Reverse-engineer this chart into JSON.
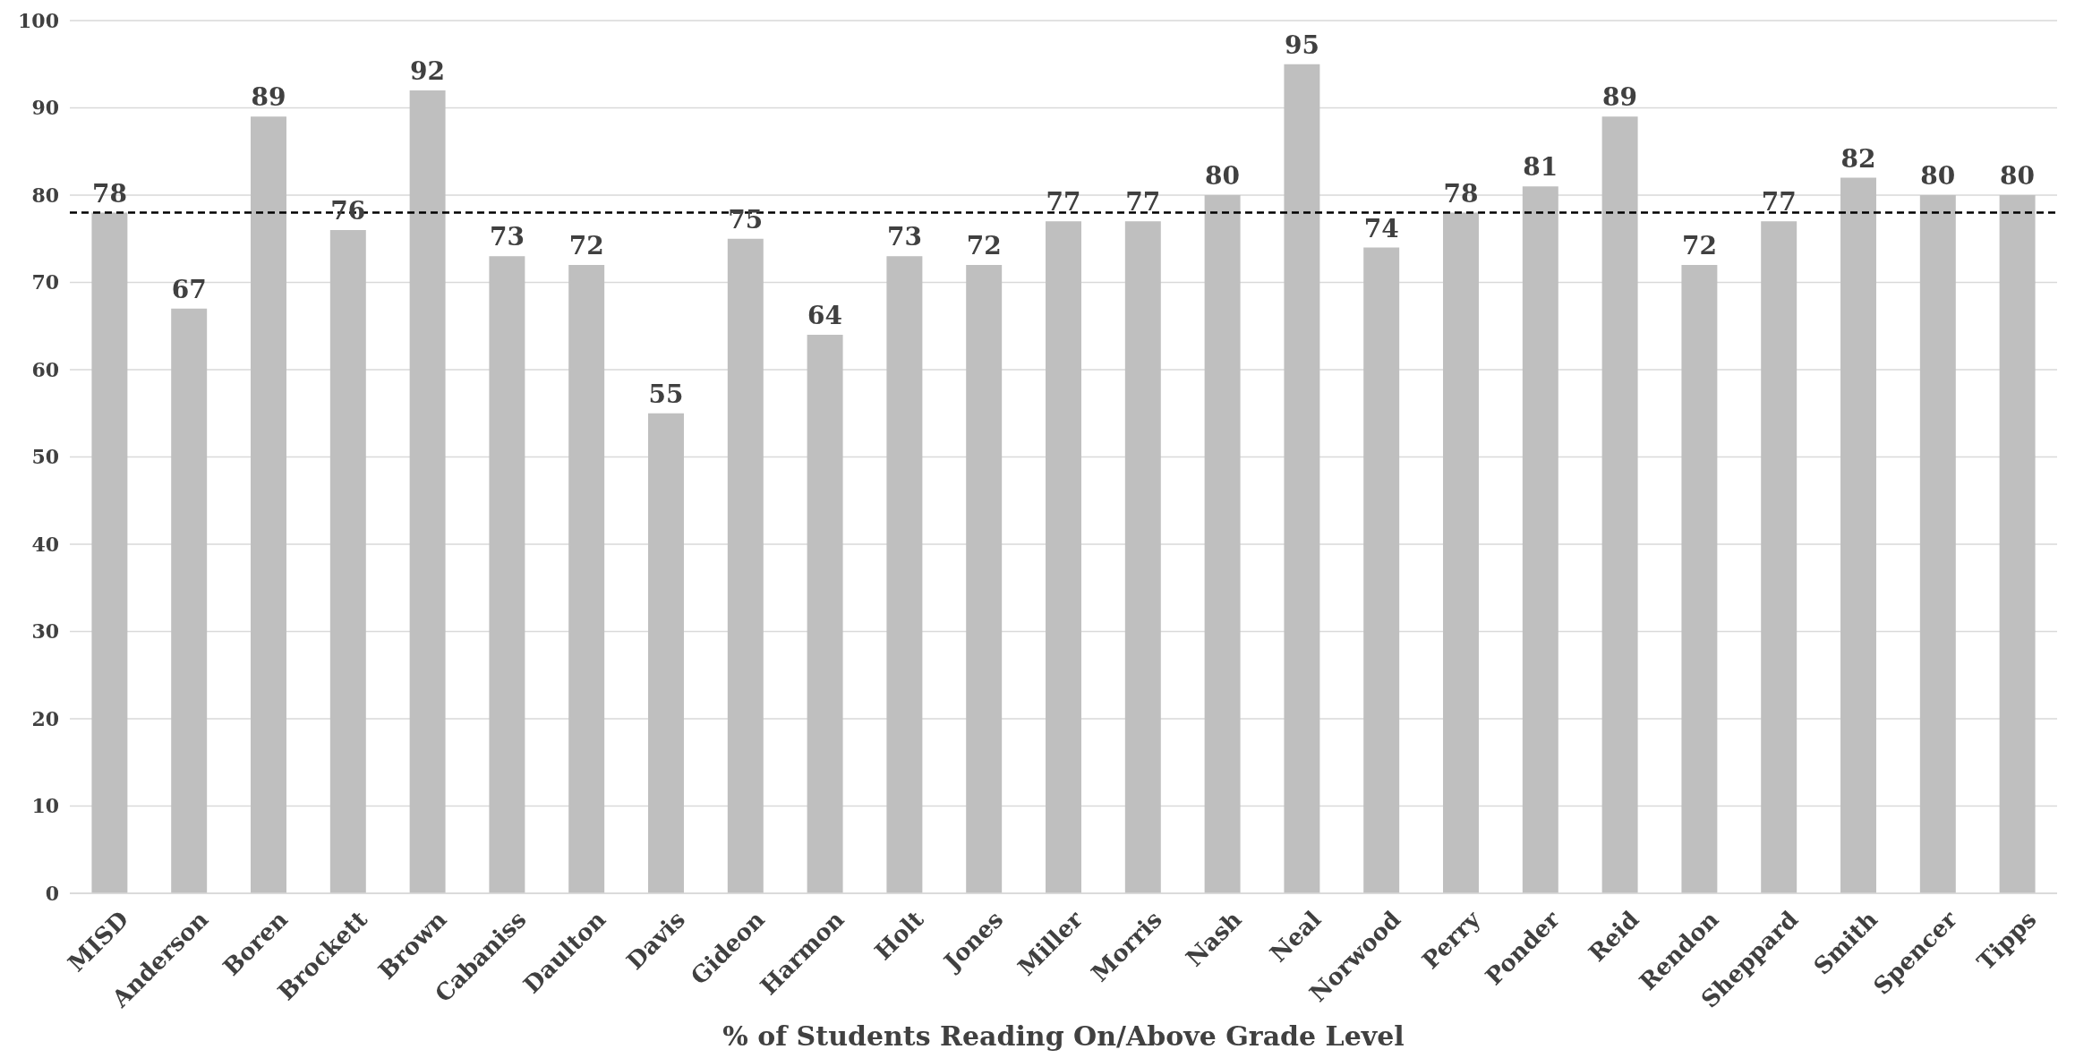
{
  "chart_data": {
    "type": "bar",
    "xlabel": "% of Students Reading On/Above Grade Level",
    "categories": [
      "MISD",
      "Anderson",
      "Boren",
      "Brockett",
      "Brown",
      "Cabaniss",
      "Daulton",
      "Davis",
      "Gideon",
      "Harmon",
      "Holt",
      "Jones",
      "Miller",
      "Morris",
      "Nash",
      "Neal",
      "Norwood",
      "Perry",
      "Ponder",
      "Reid",
      "Rendon",
      "Sheppard",
      "Smith",
      "Spencer",
      "Tipps"
    ],
    "values": [
      78,
      67,
      89,
      76,
      92,
      73,
      72,
      55,
      75,
      64,
      73,
      72,
      77,
      77,
      80,
      95,
      74,
      78,
      81,
      89,
      72,
      77,
      82,
      80,
      80
    ],
    "color": "#bfbfbf",
    "ylim": [
      0,
      100
    ],
    "yticks": [
      0,
      10,
      20,
      30,
      40,
      50,
      60,
      70,
      80,
      90,
      100
    ],
    "grid": "y",
    "data_labels": true,
    "ref_lines": [
      {
        "axis": "y",
        "value": 78,
        "color": "#000000",
        "line_style": "dashed"
      }
    ]
  }
}
